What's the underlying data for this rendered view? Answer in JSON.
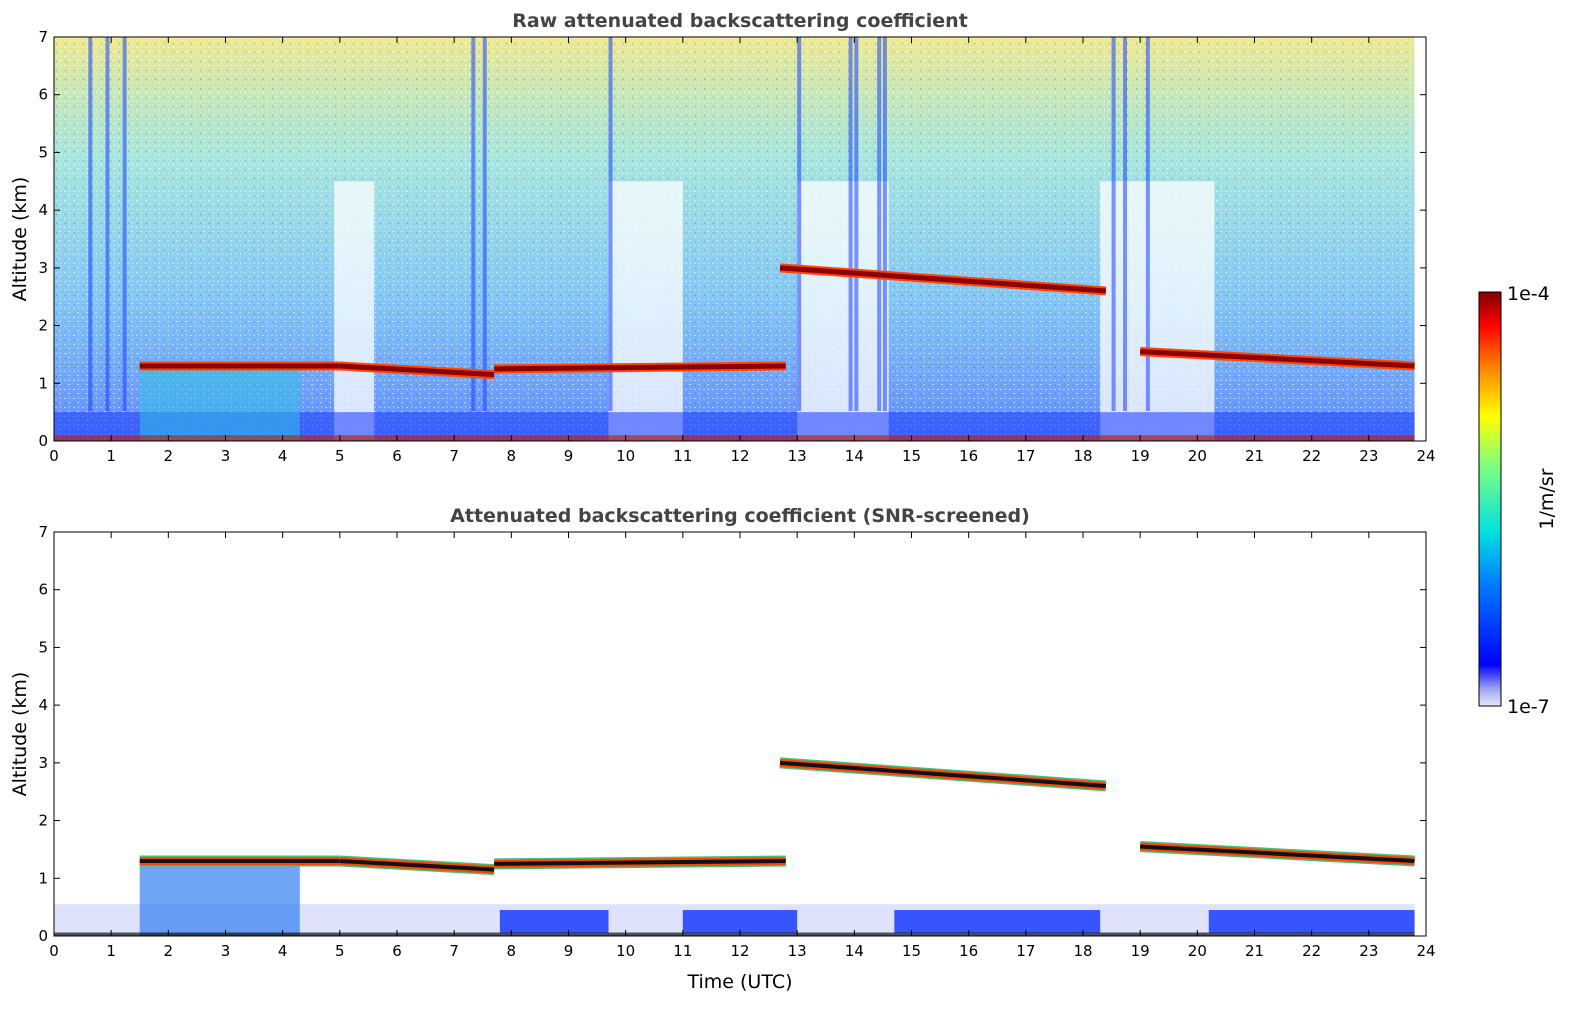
{
  "chart_data": [
    {
      "type": "heatmap",
      "title": "Raw attenuated backscattering coefficient",
      "xlabel": "",
      "ylabel": "Altitude (km)",
      "xlim": [
        0,
        24
      ],
      "ylim": [
        0,
        7
      ],
      "xticks": [
        "0",
        "1",
        "2",
        "3",
        "4",
        "5",
        "6",
        "7",
        "8",
        "9",
        "10",
        "11",
        "12",
        "13",
        "14",
        "15",
        "16",
        "17",
        "18",
        "19",
        "20",
        "21",
        "22",
        "23",
        "24"
      ],
      "yticks": [
        "0",
        "1",
        "2",
        "3",
        "4",
        "5",
        "6",
        "7"
      ],
      "features": {
        "cloud_layers": [
          {
            "t": [
              1.5,
              5.0
            ],
            "alt": [
              1.3,
              1.3
            ]
          },
          {
            "t": [
              5.0,
              7.7
            ],
            "alt": [
              1.3,
              1.15
            ]
          },
          {
            "t": [
              7.7,
              12.8
            ],
            "alt": [
              1.25,
              1.3
            ]
          },
          {
            "t": [
              12.7,
              18.4
            ],
            "alt": [
              3.0,
              2.6
            ]
          },
          {
            "t": [
              19.0,
              23.8
            ],
            "alt": [
              1.55,
              1.3
            ]
          }
        ],
        "boundary_layer_depth_km": 0.5
      }
    },
    {
      "type": "heatmap",
      "title": "Attenuated backscattering coefficient (SNR-screened)",
      "xlabel": "Time (UTC)",
      "ylabel": "Altitude (km)",
      "xlim": [
        0,
        24
      ],
      "ylim": [
        0,
        7
      ],
      "xticks": [
        "0",
        "1",
        "2",
        "3",
        "4",
        "5",
        "6",
        "7",
        "8",
        "9",
        "10",
        "11",
        "12",
        "13",
        "14",
        "15",
        "16",
        "17",
        "18",
        "19",
        "20",
        "21",
        "22",
        "23",
        "24"
      ],
      "yticks": [
        "0",
        "1",
        "2",
        "3",
        "4",
        "5",
        "6",
        "7"
      ]
    }
  ],
  "colorbar": {
    "max_label": "1e-4",
    "min_label": "1e-7",
    "unit_label": "1/m/sr",
    "colormap": "jet",
    "scale": "log"
  },
  "colors": {
    "layer_core": "#8b0000",
    "layer_edge": "#ff4500",
    "boundary_layer": "#1a3cff",
    "background_noise_low": "#1a5cff",
    "background_noise_high": "#f0e040",
    "screened_core": "#111111"
  }
}
